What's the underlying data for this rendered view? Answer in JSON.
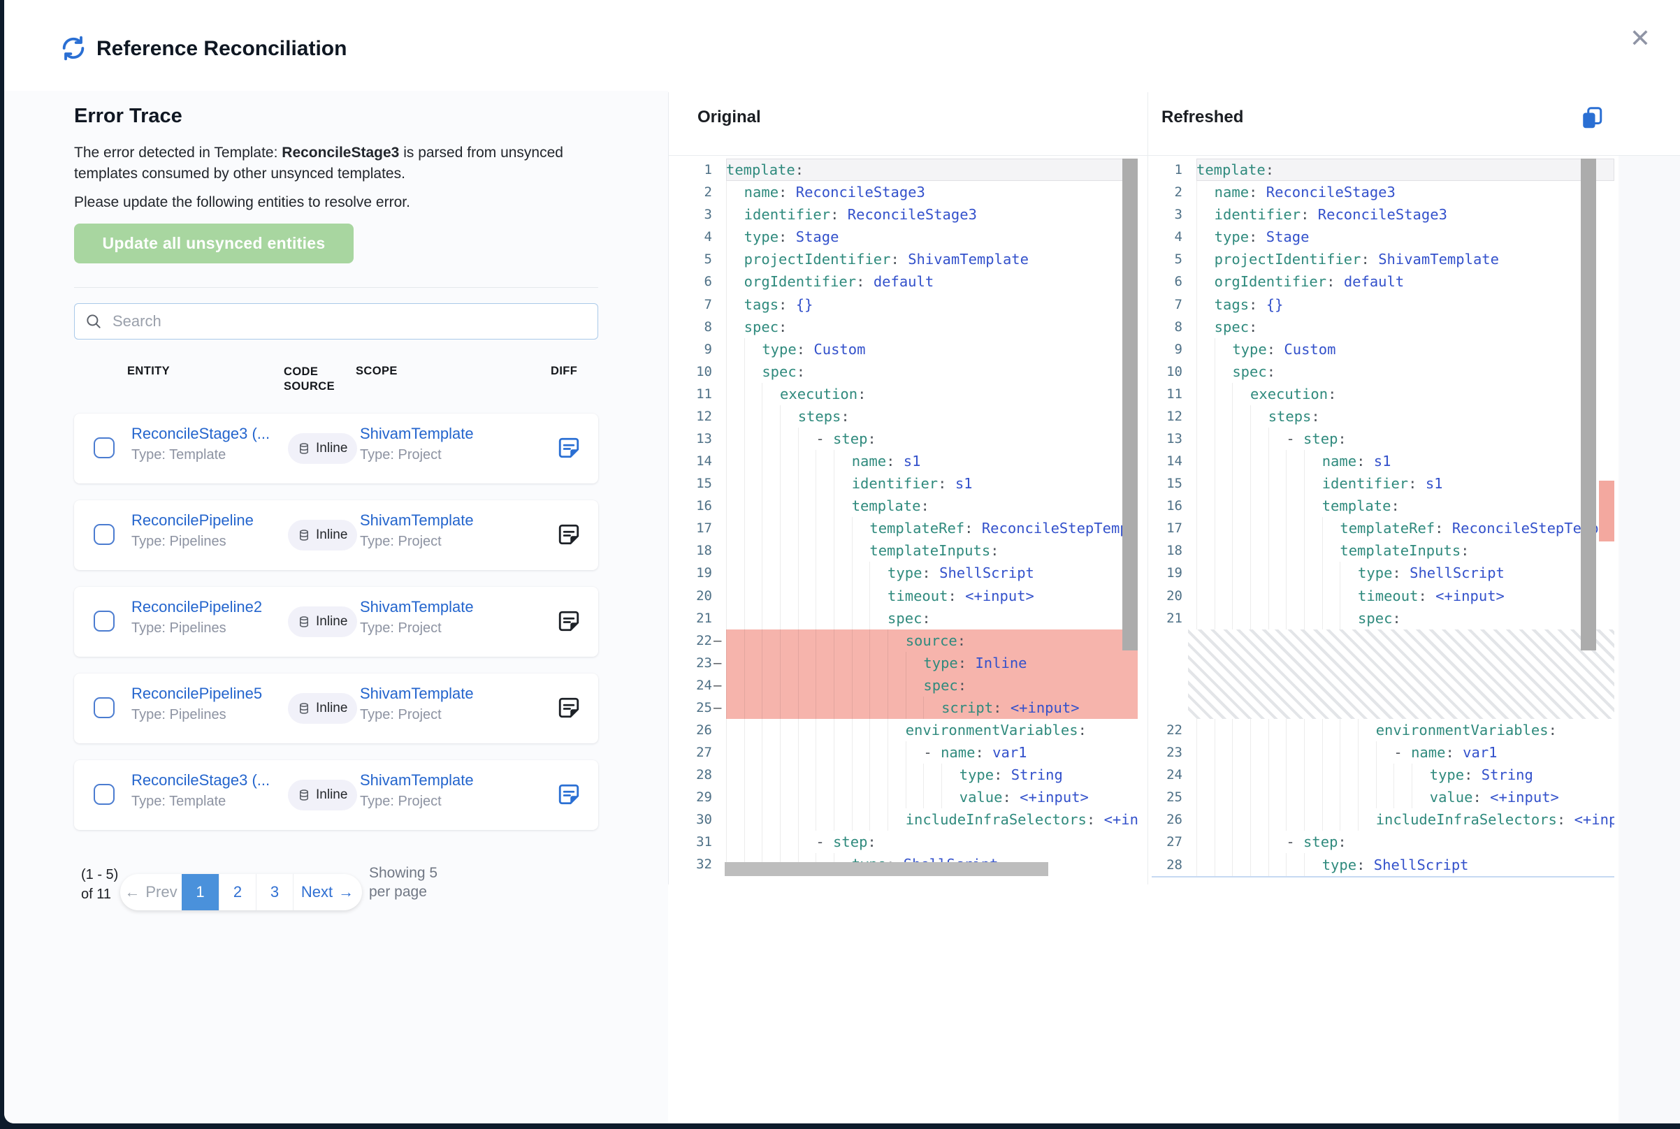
{
  "header": {
    "title": "Reference Reconciliation"
  },
  "error_trace": {
    "heading": "Error Trace",
    "desc_prefix": "The error detected in Template: ",
    "desc_bold": "ReconcileStage3",
    "desc_suffix": " is parsed from unsynced templates consumed by other unsynced templates.",
    "desc2": "Please update the following entities to resolve error.",
    "update_button": "Update all unsynced entities"
  },
  "search": {
    "placeholder": "Search"
  },
  "table": {
    "headers": {
      "entity": "ENTITY",
      "code_source": "CODE SOURCE",
      "scope": "SCOPE",
      "diff": "DIFF"
    },
    "rows": [
      {
        "name": "ReconcileStage3 (...",
        "type": "Type: Template",
        "badge": "Inline",
        "scope": "ShivamTemplate",
        "scope_type": "Type: Project",
        "diff_color": "blue"
      },
      {
        "name": "ReconcilePipeline",
        "type": "Type: Pipelines",
        "badge": "Inline",
        "scope": "ShivamTemplate",
        "scope_type": "Type: Project",
        "diff_color": "dark"
      },
      {
        "name": "ReconcilePipeline2",
        "type": "Type: Pipelines",
        "badge": "Inline",
        "scope": "ShivamTemplate",
        "scope_type": "Type: Project",
        "diff_color": "dark"
      },
      {
        "name": "ReconcilePipeline5",
        "type": "Type: Pipelines",
        "badge": "Inline",
        "scope": "ShivamTemplate",
        "scope_type": "Type: Project",
        "diff_color": "dark"
      },
      {
        "name": "ReconcileStage3 (...",
        "type": "Type: Template",
        "badge": "Inline",
        "scope": "ShivamTemplate",
        "scope_type": "Type: Project",
        "diff_color": "blue"
      }
    ]
  },
  "pagination": {
    "range": "(1 - 5) of 11",
    "prev": "Prev",
    "prev_icon": "←",
    "pages": [
      "1",
      "2",
      "3"
    ],
    "active_page": "1",
    "next": "Next",
    "next_icon": "→",
    "showing": "Showing 5 per page"
  },
  "diff": {
    "original_label": "Original",
    "refreshed_label": "Refreshed",
    "original_lines": [
      [
        1,
        0,
        "template",
        ""
      ],
      [
        2,
        2,
        "name",
        "ReconcileStage3"
      ],
      [
        3,
        2,
        "identifier",
        "ReconcileStage3"
      ],
      [
        4,
        2,
        "type",
        "Stage"
      ],
      [
        5,
        2,
        "projectIdentifier",
        "ShivamTemplate"
      ],
      [
        6,
        2,
        "orgIdentifier",
        "default"
      ],
      [
        7,
        2,
        "tags",
        "{}"
      ],
      [
        8,
        2,
        "spec",
        ""
      ],
      [
        9,
        4,
        "type",
        "Custom"
      ],
      [
        10,
        4,
        "spec",
        ""
      ],
      [
        11,
        6,
        "execution",
        ""
      ],
      [
        12,
        8,
        "steps",
        ""
      ],
      [
        13,
        10,
        "- step",
        ""
      ],
      [
        14,
        14,
        "name",
        "s1"
      ],
      [
        15,
        14,
        "identifier",
        "s1"
      ],
      [
        16,
        14,
        "template",
        ""
      ],
      [
        17,
        16,
        "templateRef",
        "ReconcileStepTempl"
      ],
      [
        18,
        16,
        "templateInputs",
        ""
      ],
      [
        19,
        18,
        "type",
        "ShellScript"
      ],
      [
        20,
        18,
        "timeout",
        "<+input>"
      ],
      [
        21,
        18,
        "spec",
        ""
      ],
      [
        22,
        20,
        "source",
        "",
        true
      ],
      [
        23,
        22,
        "type",
        "Inline",
        true
      ],
      [
        24,
        22,
        "spec",
        "",
        true
      ],
      [
        25,
        24,
        "script",
        "<+input>",
        true
      ],
      [
        26,
        20,
        "environmentVariables",
        ""
      ],
      [
        27,
        22,
        "- name",
        "var1"
      ],
      [
        28,
        26,
        "type",
        "String"
      ],
      [
        29,
        26,
        "value",
        "<+input>"
      ],
      [
        30,
        20,
        "includeInfraSelectors",
        "<+input>"
      ],
      [
        31,
        10,
        "- step",
        ""
      ],
      [
        32,
        14,
        "type",
        "ShellScript"
      ]
    ],
    "refreshed_lines": [
      [
        1,
        0,
        "template",
        ""
      ],
      [
        2,
        2,
        "name",
        "ReconcileStage3"
      ],
      [
        3,
        2,
        "identifier",
        "ReconcileStage3"
      ],
      [
        4,
        2,
        "type",
        "Stage"
      ],
      [
        5,
        2,
        "projectIdentifier",
        "ShivamTemplate"
      ],
      [
        6,
        2,
        "orgIdentifier",
        "default"
      ],
      [
        7,
        2,
        "tags",
        "{}"
      ],
      [
        8,
        2,
        "spec",
        ""
      ],
      [
        9,
        4,
        "type",
        "Custom"
      ],
      [
        10,
        4,
        "spec",
        ""
      ],
      [
        11,
        6,
        "execution",
        ""
      ],
      [
        12,
        8,
        "steps",
        ""
      ],
      [
        13,
        10,
        "- step",
        ""
      ],
      [
        14,
        14,
        "name",
        "s1"
      ],
      [
        15,
        14,
        "identifier",
        "s1"
      ],
      [
        16,
        14,
        "template",
        ""
      ],
      [
        17,
        16,
        "templateRef",
        "ReconcileStepTempl"
      ],
      [
        18,
        16,
        "templateInputs",
        ""
      ],
      [
        19,
        18,
        "type",
        "ShellScript"
      ],
      [
        20,
        18,
        "timeout",
        "<+input>"
      ],
      [
        21,
        18,
        "spec",
        ""
      ],
      [
        "hatch"
      ],
      [
        22,
        20,
        "environmentVariables",
        ""
      ],
      [
        23,
        22,
        "- name",
        "var1"
      ],
      [
        24,
        26,
        "type",
        "String"
      ],
      [
        25,
        26,
        "value",
        "<+input>"
      ],
      [
        26,
        20,
        "includeInfraSelectors",
        "<+input>"
      ],
      [
        27,
        10,
        "- step",
        ""
      ],
      [
        28,
        14,
        "type",
        "ShellScript"
      ]
    ]
  },
  "colors": {
    "accent_blue": "#2a6fd3",
    "link_blue": "#2465cd",
    "active_page_blue": "#4a91db",
    "button_green": "#a8d6a0",
    "deleted_line_red": "#f6b4ac",
    "overview_marker_red": "#f3a89f",
    "key_teal": "#2f8a7d",
    "value_blue": "#3351cb"
  }
}
